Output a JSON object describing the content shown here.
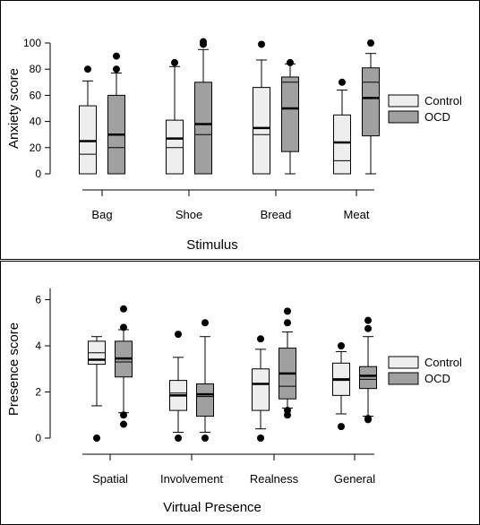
{
  "chart_data": [
    {
      "type": "box",
      "xlabel": "Stimulus",
      "ylabel": "Anxiety score",
      "ylim": [
        0,
        100
      ],
      "yticks": [
        "0",
        "20",
        "40",
        "60",
        "80",
        "100"
      ],
      "categories": [
        "Bag",
        "Shoe",
        "Bread",
        "Meat"
      ],
      "legend": [
        "Control",
        "OCD"
      ],
      "legend_position": "right",
      "colors": {
        "Control": "#eeeeee",
        "OCD": "#a0a0a0"
      },
      "series": [
        {
          "name": "Control",
          "boxes": [
            {
              "whislo": 0,
              "q1": 0,
              "med": 25,
              "mean": 15,
              "q3": 52,
              "whishi": 71,
              "fliers": [
                80
              ]
            },
            {
              "whislo": 0,
              "q1": 0,
              "med": 27,
              "mean": 20,
              "q3": 41,
              "whishi": 82,
              "fliers": [
                85
              ]
            },
            {
              "whislo": 0,
              "q1": 0,
              "med": 35,
              "mean": 30,
              "q3": 66,
              "whishi": 87,
              "fliers": [
                99
              ]
            },
            {
              "whislo": 0,
              "q1": 0,
              "med": 24,
              "mean": 10,
              "q3": 45,
              "whishi": 64,
              "fliers": [
                70
              ]
            }
          ]
        },
        {
          "name": "OCD",
          "boxes": [
            {
              "whislo": 0,
              "q1": 0,
              "med": 30,
              "mean": 20,
              "q3": 60,
              "whishi": 77,
              "fliers": [
                80,
                90
              ]
            },
            {
              "whislo": 0,
              "q1": 0,
              "med": 38,
              "mean": 30,
              "q3": 70,
              "whishi": 95,
              "fliers": [
                99,
                101
              ]
            },
            {
              "whislo": 0,
              "q1": 17,
              "med": 50,
              "mean": 70,
              "q3": 74,
              "whishi": 84,
              "fliers": [
                85
              ]
            },
            {
              "whislo": 0,
              "q1": 29,
              "med": 58,
              "mean": 70,
              "q3": 81,
              "whishi": 92,
              "fliers": [
                100
              ]
            }
          ]
        }
      ]
    },
    {
      "type": "box",
      "xlabel": "Virtual Presence",
      "ylabel": "Presence score",
      "ylim": [
        0,
        6.5
      ],
      "yticks": [
        "0",
        "2",
        "4",
        "6"
      ],
      "categories": [
        "Spatial",
        "Involvement",
        "Realness",
        "General"
      ],
      "legend": [
        "Control",
        "OCD"
      ],
      "legend_position": "right",
      "colors": {
        "Control": "#eeeeee",
        "OCD": "#a0a0a0"
      },
      "series": [
        {
          "name": "Control",
          "boxes": [
            {
              "whislo": 1.4,
              "q1": 3.2,
              "med": 3.4,
              "mean": 3.7,
              "q3": 4.2,
              "whishi": 4.4,
              "fliers": [
                0
              ]
            },
            {
              "whislo": 0.25,
              "q1": 1.2,
              "med": 1.85,
              "mean": 1.95,
              "q3": 2.5,
              "whishi": 3.5,
              "fliers": [
                0,
                4.5
              ]
            },
            {
              "whislo": 0.4,
              "q1": 1.2,
              "med": 2.35,
              "mean": 2.35,
              "q3": 3.0,
              "whishi": 3.85,
              "fliers": [
                0,
                4.3
              ]
            },
            {
              "whislo": 1.05,
              "q1": 1.85,
              "med": 2.55,
              "mean": 2.5,
              "q3": 3.25,
              "whishi": 3.75,
              "fliers": [
                0.5,
                4.0
              ]
            }
          ]
        },
        {
          "name": "OCD",
          "boxes": [
            {
              "whislo": 1.1,
              "q1": 2.65,
              "med": 3.45,
              "mean": 3.3,
              "q3": 4.2,
              "whishi": 4.7,
              "fliers": [
                0.6,
                1.0,
                4.8,
                5.6
              ]
            },
            {
              "whislo": 0.25,
              "q1": 0.95,
              "med": 1.9,
              "mean": 1.8,
              "q3": 2.35,
              "whishi": 4.4,
              "fliers": [
                0,
                5.0
              ]
            },
            {
              "whislo": 1.3,
              "q1": 1.7,
              "med": 2.8,
              "mean": 2.25,
              "q3": 3.9,
              "whishi": 4.6,
              "fliers": [
                1.0,
                1.2,
                5.0,
                5.5
              ]
            },
            {
              "whislo": 0.95,
              "q1": 2.15,
              "med": 2.7,
              "mean": 2.55,
              "q3": 3.1,
              "whishi": 4.4,
              "fliers": [
                0.8,
                0.85,
                4.75,
                5.1
              ]
            }
          ]
        }
      ]
    }
  ]
}
